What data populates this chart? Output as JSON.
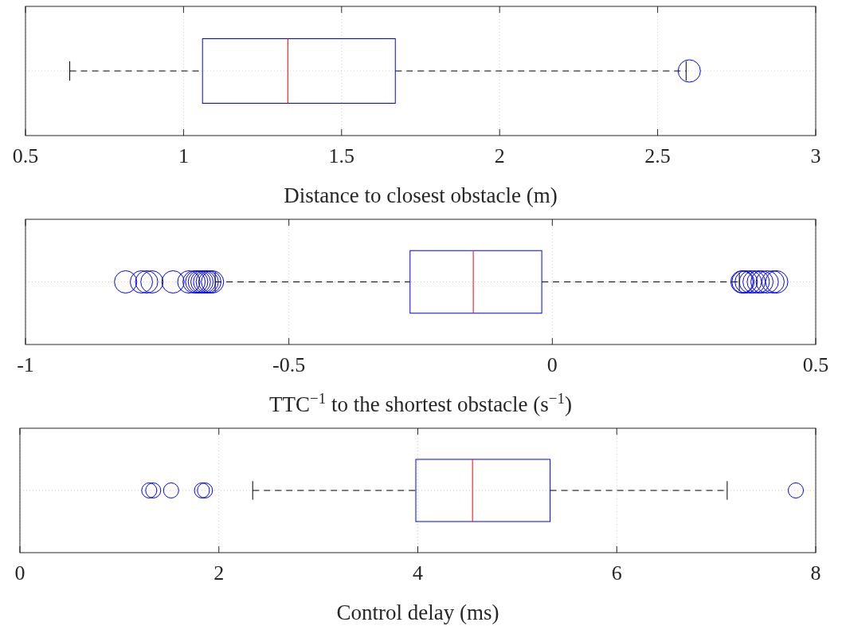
{
  "chart_data": [
    {
      "type": "box",
      "orientation": "horizontal",
      "categories": [
        null
      ],
      "color": "#0000ff",
      "xlabel": "Distance to closest obstacle (m)",
      "xlim": [
        0.5,
        3
      ],
      "xticks": [
        0.5,
        1,
        1.5,
        2,
        2.5,
        3
      ],
      "grid": true,
      "boxes": [
        {
          "low": 0.64,
          "q1": 1.06,
          "median": 1.33,
          "q3": 1.67,
          "high": 2.59,
          "outliers": [
            2.6
          ]
        }
      ]
    },
    {
      "type": "box",
      "orientation": "horizontal",
      "categories": [
        null
      ],
      "color": "#0000ff",
      "xlabel": "TTC$^{−1}$ to the shortest obstacle (s$^{−1}$)",
      "xlim": [
        -1,
        0.5
      ],
      "xticks": [
        -1,
        -0.5,
        0,
        0.5
      ],
      "grid": true,
      "boxes": [
        {
          "low": -0.64,
          "q1": -0.27,
          "median": -0.15,
          "q3": -0.02,
          "high": 0.355,
          "outliers": [
            -0.81,
            -0.78,
            -0.77,
            -0.76,
            -0.72,
            -0.69,
            -0.68,
            -0.675,
            -0.67,
            -0.665,
            -0.66,
            -0.655,
            -0.65,
            -0.645,
            0.36,
            0.362,
            0.368,
            0.376,
            0.383,
            0.391,
            0.398,
            0.408,
            0.419,
            0.426
          ]
        }
      ]
    },
    {
      "type": "box",
      "orientation": "horizontal",
      "categories": [
        null
      ],
      "color": "#0000ff",
      "xlabel": "Control delay (ms)",
      "xlim": [
        0,
        8
      ],
      "xticks": [
        0,
        2,
        4,
        6,
        8
      ],
      "grid": true,
      "boxes": [
        {
          "low": 2.34,
          "q1": 3.98,
          "median": 4.55,
          "q3": 5.33,
          "high": 7.11,
          "outliers": [
            1.3,
            1.34,
            1.52,
            1.83,
            1.86,
            7.8
          ]
        }
      ]
    }
  ]
}
